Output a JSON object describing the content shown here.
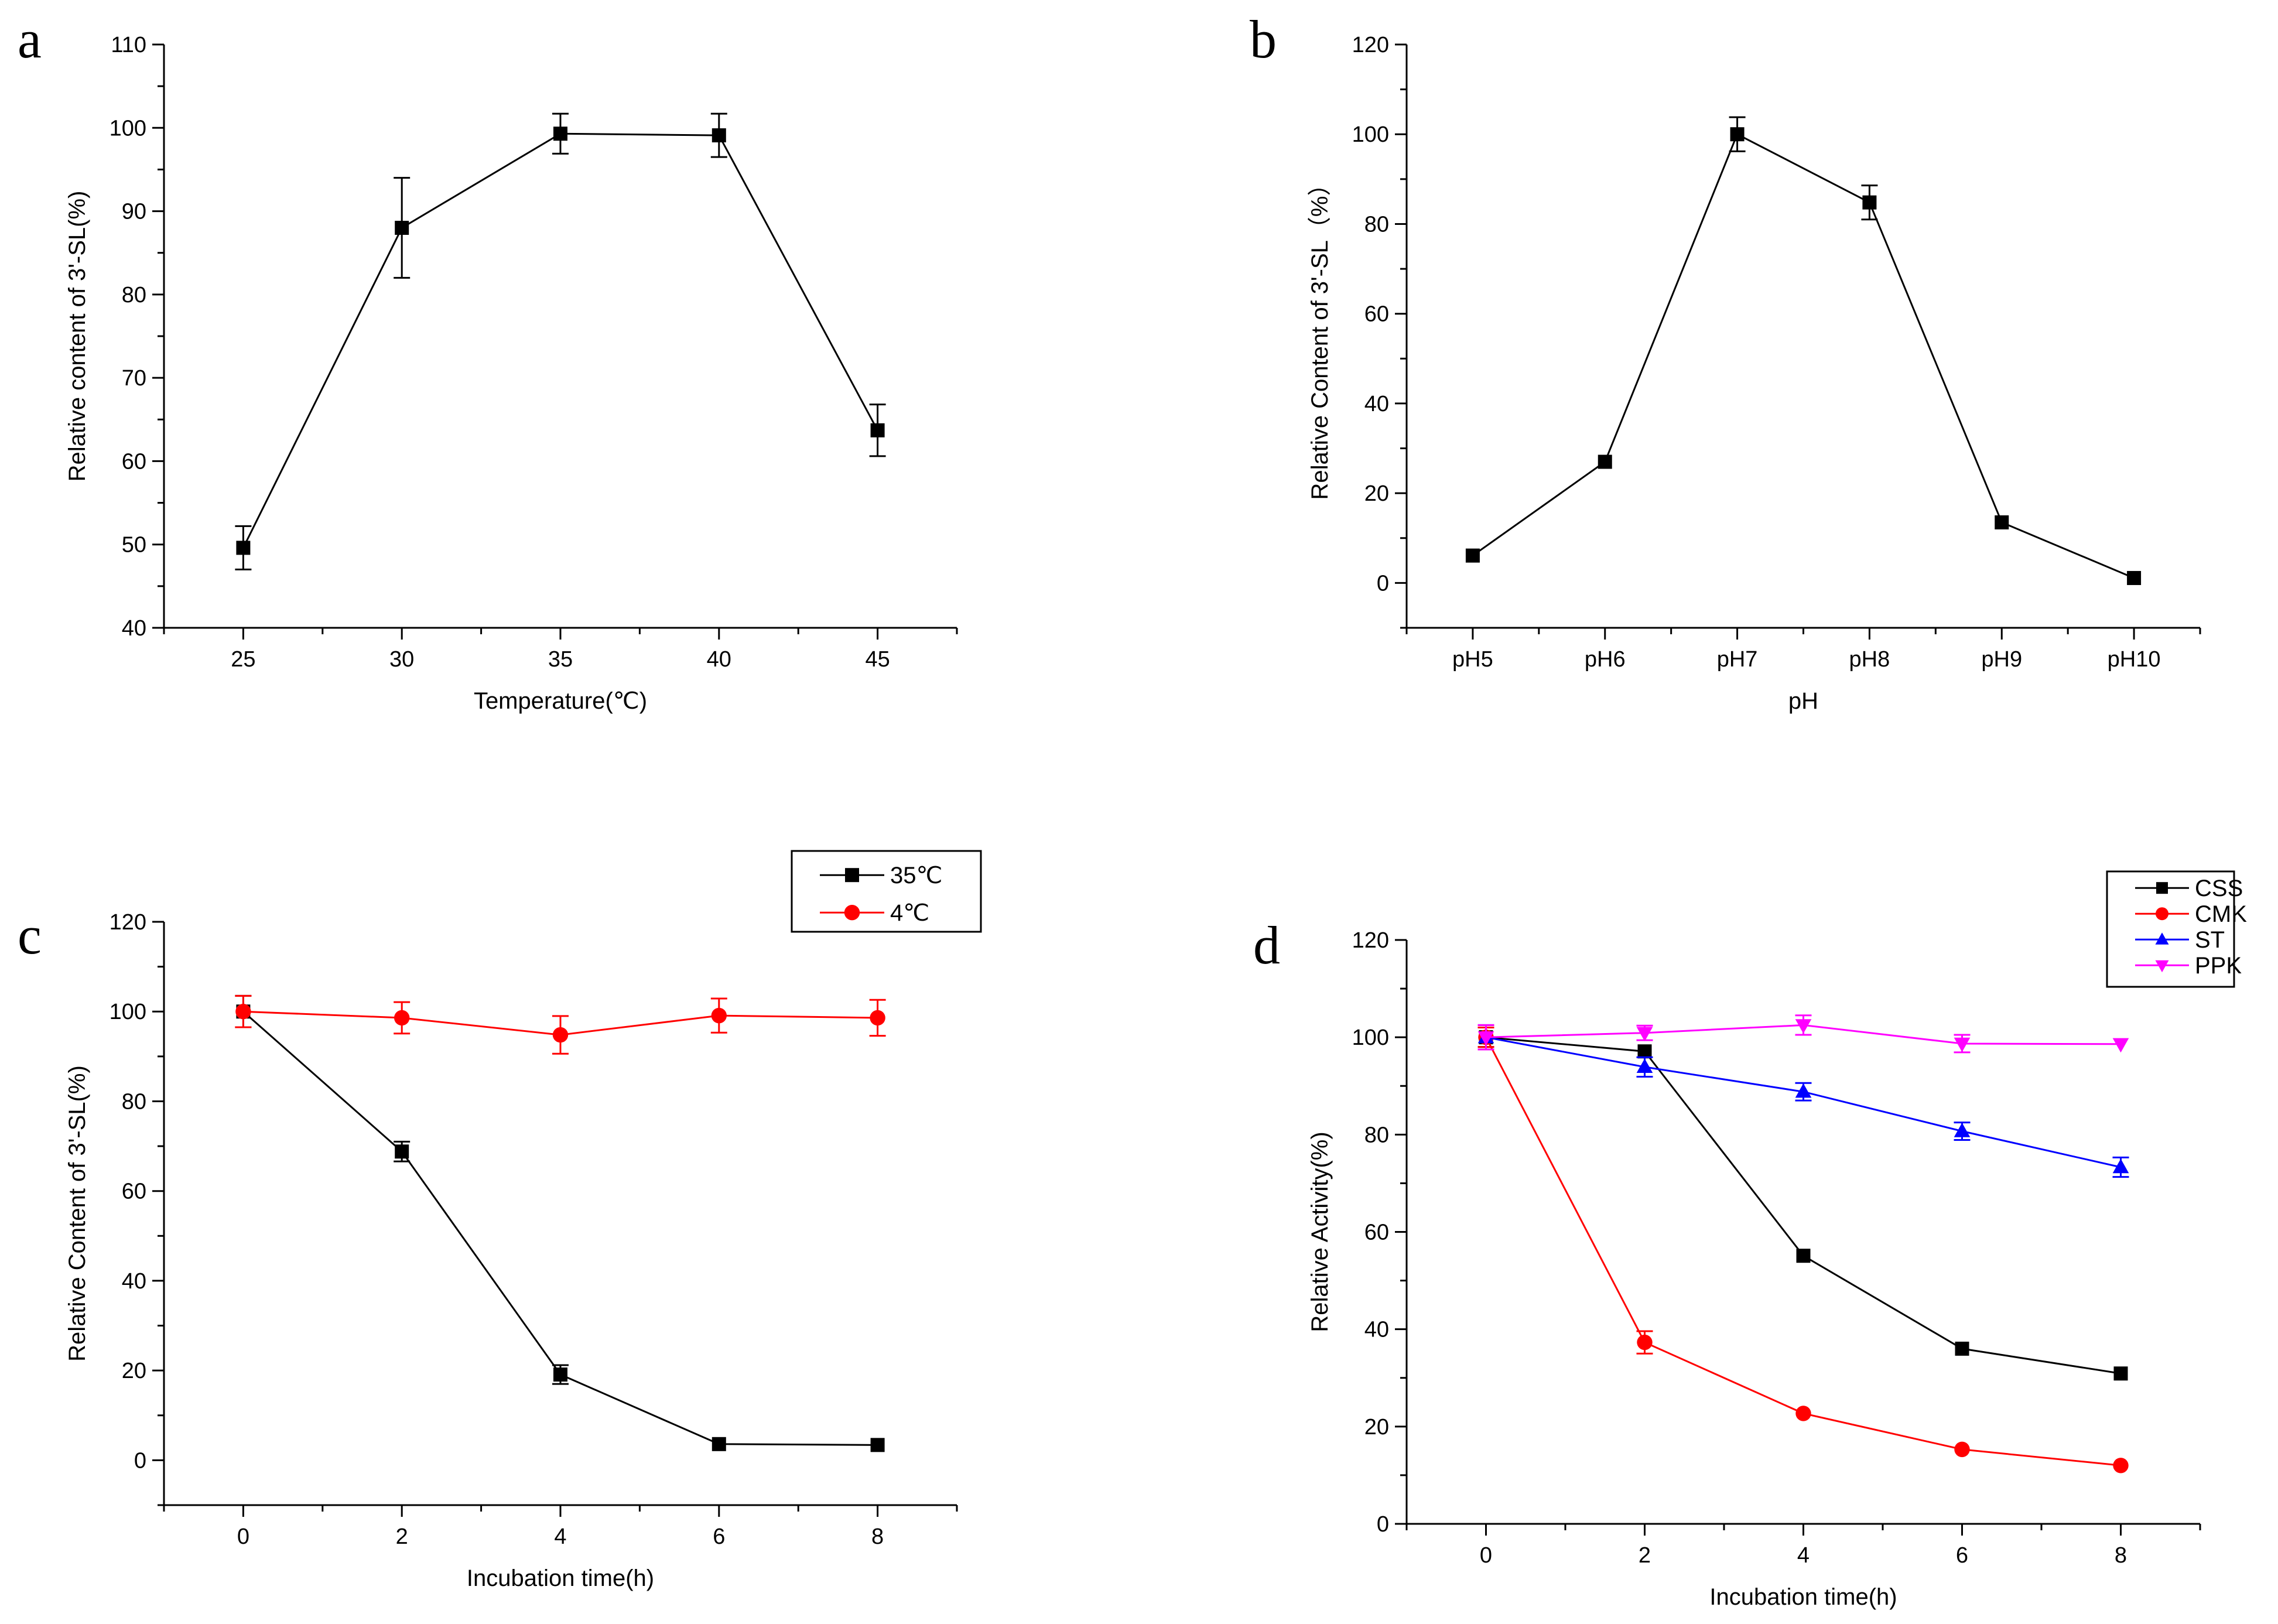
{
  "panels": [
    {
      "letter": "a",
      "chart_data": {
        "type": "line",
        "xlabel": "Temperature(℃)",
        "ylabel": "Relative content of 3'-SL(%)",
        "x": [
          25,
          30,
          35,
          40,
          45
        ],
        "xlim": [
          22.5,
          47.5
        ],
        "xticks": [
          25,
          30,
          35,
          40,
          45
        ],
        "ylim": [
          40,
          110
        ],
        "yticks": [
          40,
          50,
          60,
          70,
          80,
          90,
          100,
          110
        ],
        "legend": null,
        "series": [
          {
            "color": "#000000",
            "marker": "square",
            "values": [
              49.6,
              88.0,
              99.3,
              99.1,
              63.7
            ],
            "errors": [
              2.6,
              6.0,
              2.4,
              2.6,
              3.1
            ]
          }
        ]
      }
    },
    {
      "letter": "b",
      "chart_data": {
        "type": "line",
        "xlabel": "pH",
        "ylabel": "Relative Content of 3'-SL（%）",
        "categories": [
          "pH5",
          "pH6",
          "pH7",
          "pH8",
          "pH9",
          "pH10"
        ],
        "x": [
          0,
          1,
          2,
          3,
          4,
          5
        ],
        "xlim": [
          -0.5,
          5.5
        ],
        "xticks": [
          0,
          1,
          2,
          3,
          4,
          5
        ],
        "ylim": [
          -10,
          120
        ],
        "yticks": [
          0,
          20,
          40,
          60,
          80,
          100,
          120
        ],
        "legend": null,
        "series": [
          {
            "color": "#000000",
            "marker": "square",
            "values": [
              6.1,
              27.0,
              100.0,
              84.8,
              13.5,
              1.1
            ],
            "errors": [
              0,
              0,
              3.8,
              3.8,
              0,
              0
            ]
          }
        ]
      }
    },
    {
      "letter": "c",
      "chart_data": {
        "type": "line",
        "xlabel": "Incubation time(h)",
        "ylabel": "Relative Content of 3'-SL(%)",
        "x": [
          0,
          2,
          4,
          6,
          8
        ],
        "xlim": [
          -1,
          9
        ],
        "xticks": [
          0,
          2,
          4,
          6,
          8
        ],
        "ylim": [
          -10,
          120
        ],
        "yticks": [
          0,
          20,
          40,
          60,
          80,
          100,
          120
        ],
        "legend": "top-right, outside plot",
        "series": [
          {
            "name": "35℃",
            "color": "#000000",
            "marker": "square",
            "values": [
              100.0,
              68.8,
              19.1,
              3.6,
              3.4
            ],
            "errors": [
              3.5,
              2.2,
              2.1,
              0,
              0
            ]
          },
          {
            "name": "4℃",
            "color": "#ff0000",
            "marker": "circle",
            "values": [
              100.0,
              98.6,
              94.8,
              99.1,
              98.6
            ],
            "errors": [
              3.5,
              3.5,
              4.2,
              3.8,
              4.0
            ]
          }
        ]
      }
    },
    {
      "letter": "d",
      "chart_data": {
        "type": "line",
        "xlabel": "Incubation time(h)",
        "ylabel": "Relative Activity(%)",
        "x": [
          0,
          2,
          4,
          6,
          8
        ],
        "xlim": [
          -1,
          9
        ],
        "xticks": [
          0,
          2,
          4,
          6,
          8
        ],
        "ylim": [
          0,
          120
        ],
        "yticks": [
          0,
          20,
          40,
          60,
          80,
          100,
          120
        ],
        "legend": "top-right, outside plot",
        "series": [
          {
            "name": "CSS",
            "color": "#000000",
            "marker": "square",
            "values": [
              100.0,
              97.1,
              55.1,
              36.0,
              30.9
            ],
            "errors": [
              2.0,
              0,
              0,
              0,
              0
            ]
          },
          {
            "name": "CMK",
            "color": "#ff0000",
            "marker": "circle",
            "values": [
              100.0,
              37.3,
              22.7,
              15.3,
              12.0
            ],
            "errors": [
              2.0,
              2.3,
              0,
              0,
              0
            ]
          },
          {
            "name": "ST",
            "color": "#0000ff",
            "marker": "triangle-up",
            "values": [
              100.0,
              93.9,
              88.8,
              80.7,
              73.3
            ],
            "errors": [
              2.5,
              2.0,
              1.8,
              1.8,
              2.0
            ]
          },
          {
            "name": "PPK",
            "color": "#ff00ff",
            "marker": "triangle-down",
            "values": [
              100.0,
              100.9,
              102.5,
              98.7,
              98.6
            ],
            "errors": [
              2.5,
              1.5,
              2.0,
              1.8,
              0
            ]
          }
        ]
      }
    }
  ]
}
